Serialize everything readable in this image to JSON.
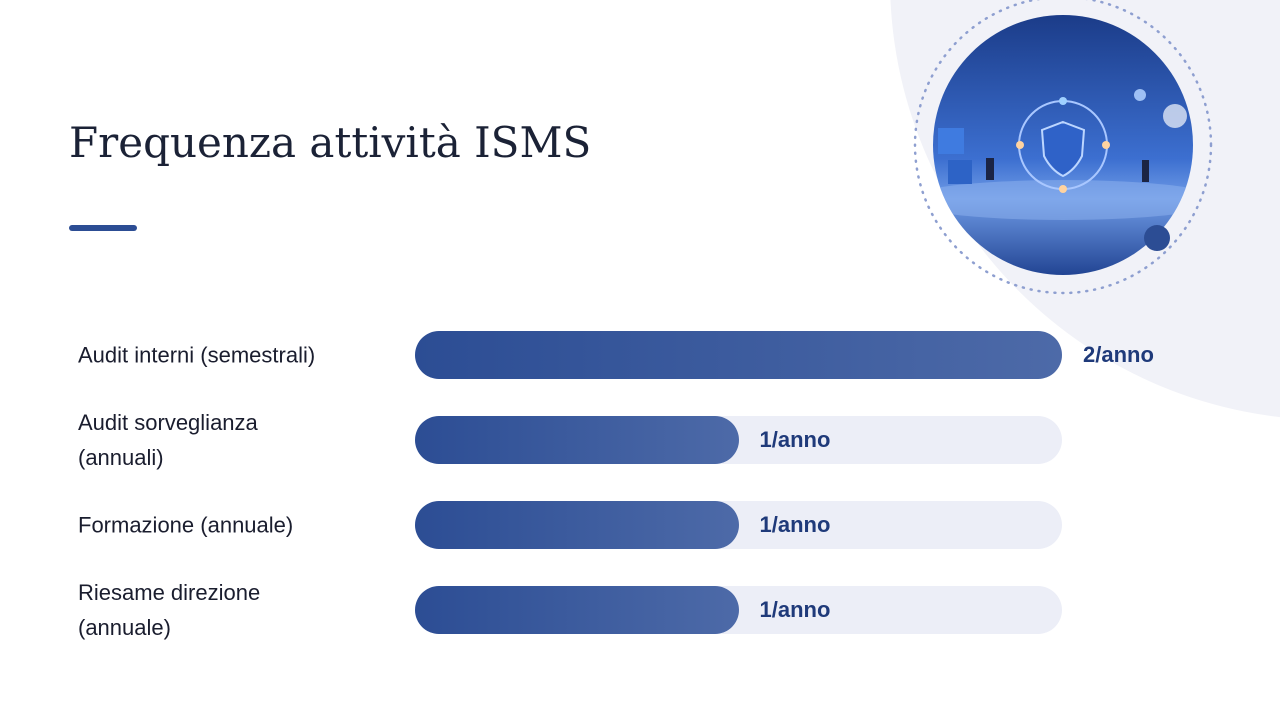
{
  "chart_data": {
    "type": "bar",
    "orientation": "horizontal",
    "title": "Frequenza attività ISMS",
    "categories": [
      "Audit interni (semestrali)",
      "Audit sorveglianza (annuali)",
      "Formazione (annuale)",
      "Riesame direzione (annuale)"
    ],
    "values": [
      2,
      1,
      1,
      1
    ],
    "value_labels": [
      "2/anno",
      "1/anno",
      "1/anno",
      "1/anno"
    ],
    "xlim": [
      0,
      2
    ],
    "color": "#2c4d94"
  }
}
